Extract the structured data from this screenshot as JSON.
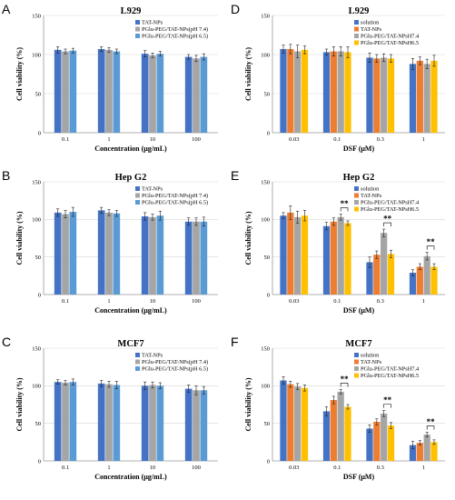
{
  "colors": {
    "blue": "#4472C4",
    "gray": "#A5A5A5",
    "lightblue": "#5B9BD5",
    "orange": "#ED7D31",
    "yellow": "#FFC000",
    "error": "#222222",
    "axis": "#999999",
    "grid": "#d8d8d8"
  },
  "chart_data": [
    {
      "letter": "A",
      "type": "bar",
      "title": "L929",
      "xlabel": "Concentration (μg/mL)",
      "ylabel": "Cell viability (%)",
      "ylim": [
        0,
        150
      ],
      "yticks": [
        0,
        50,
        100,
        150
      ],
      "categories": [
        "0.1",
        "1",
        "10",
        "100"
      ],
      "series": [
        {
          "name": "TAT-NPs",
          "color": "blue",
          "values": [
            106,
            107,
            101,
            97
          ],
          "errors": [
            4,
            3,
            4,
            3
          ]
        },
        {
          "name": "PGlu-PEG/TAT-NPs(pH 7.4)",
          "color": "gray",
          "values": [
            104,
            106,
            99,
            95
          ],
          "errors": [
            3,
            3,
            3,
            4
          ]
        },
        {
          "name": "PGlu-PEG/TAT-NPs(pH 6.5)",
          "color": "lightblue",
          "values": [
            105,
            104,
            101,
            97
          ],
          "errors": [
            3,
            3,
            3,
            4
          ]
        }
      ],
      "significance": [],
      "legend": "top-right"
    },
    {
      "letter": "B",
      "type": "bar",
      "title": "Hep G2",
      "xlabel": "Concentration (μg/mL)",
      "ylabel": "Cell viability (%)",
      "ylim": [
        0,
        150
      ],
      "yticks": [
        0,
        50,
        100,
        150
      ],
      "categories": [
        "0.1",
        "1",
        "10",
        "100"
      ],
      "series": [
        {
          "name": "TAT-NPs",
          "color": "blue",
          "values": [
            109,
            112,
            104,
            97
          ],
          "errors": [
            5,
            4,
            5,
            5
          ]
        },
        {
          "name": "PGlu-PEG/TAT-NPs(pH 7.4)",
          "color": "gray",
          "values": [
            107,
            109,
            103,
            97
          ],
          "errors": [
            5,
            4,
            4,
            5
          ]
        },
        {
          "name": "PGlu-PEG/TAT-NPs(pH 6.5)",
          "color": "lightblue",
          "values": [
            110,
            108,
            105,
            97
          ],
          "errors": [
            6,
            4,
            6,
            6
          ]
        }
      ],
      "significance": [],
      "legend": "top-right"
    },
    {
      "letter": "C",
      "type": "bar",
      "title": "MCF7",
      "xlabel": "Concentration (μg/mL)",
      "ylabel": "Cell viability (%)",
      "ylim": [
        0,
        150
      ],
      "yticks": [
        0,
        50,
        100,
        150
      ],
      "categories": [
        "0.1",
        "1",
        "10",
        "100"
      ],
      "series": [
        {
          "name": "TAT-NPs",
          "color": "blue",
          "values": [
            105,
            103,
            100,
            96
          ],
          "errors": [
            3,
            4,
            5,
            5
          ]
        },
        {
          "name": "PGlu-PEG/TAT-NPs(pH 7.4)",
          "color": "gray",
          "values": [
            104,
            102,
            101,
            94
          ],
          "errors": [
            3,
            4,
            4,
            6
          ]
        },
        {
          "name": "PGlu-PEG/TAT-NPs(pH 6.5)",
          "color": "lightblue",
          "values": [
            105,
            101,
            100,
            94
          ],
          "errors": [
            4,
            5,
            4,
            5
          ]
        }
      ],
      "significance": [],
      "legend": "top-right"
    },
    {
      "letter": "D",
      "type": "bar",
      "title": "L929",
      "xlabel": "DSF (μM)",
      "ylabel": "Cell viability (%)",
      "ylim": [
        0,
        150
      ],
      "yticks": [
        0,
        50,
        100,
        150
      ],
      "categories": [
        "0.03",
        "0.1",
        "0.3",
        "1"
      ],
      "series": [
        {
          "name": "solution",
          "color": "blue",
          "values": [
            107,
            103,
            96,
            88
          ],
          "errors": [
            5,
            4,
            6,
            7
          ]
        },
        {
          "name": "TAT-NPs",
          "color": "orange",
          "values": [
            107,
            104,
            95,
            92
          ],
          "errors": [
            6,
            6,
            5,
            5
          ]
        },
        {
          "name": "PGlu-PEG/TAT-NPsH7.4",
          "color": "gray",
          "values": [
            104,
            104,
            96,
            88
          ],
          "errors": [
            8,
            6,
            5,
            6
          ]
        },
        {
          "name": "PGlu-PEG/TAT-NPsH6.5",
          "color": "yellow",
          "values": [
            106,
            103,
            95,
            92
          ],
          "errors": [
            5,
            7,
            5,
            7
          ]
        }
      ],
      "significance": [],
      "legend": "top-right"
    },
    {
      "letter": "E",
      "type": "bar",
      "title": "Hep G2",
      "xlabel": "DSF (μM)",
      "ylabel": "Cell viability (%)",
      "ylim": [
        0,
        150
      ],
      "yticks": [
        0,
        50,
        100,
        150
      ],
      "categories": [
        "0.03",
        "0.1",
        "0.3",
        "1"
      ],
      "series": [
        {
          "name": "solution",
          "color": "blue",
          "values": [
            105,
            91,
            43,
            29
          ],
          "errors": [
            4,
            5,
            7,
            4
          ]
        },
        {
          "name": "TAT-NPs",
          "color": "orange",
          "values": [
            109,
            97,
            53,
            37
          ],
          "errors": [
            9,
            5,
            5,
            4
          ]
        },
        {
          "name": "PGlu-PEG/TAT-NPsH7.4",
          "color": "gray",
          "values": [
            103,
            103,
            82,
            51
          ],
          "errors": [
            8,
            4,
            5,
            5
          ]
        },
        {
          "name": "PGlu-PEG/TAT-NPsH6.5",
          "color": "yellow",
          "values": [
            105,
            95,
            54,
            37
          ],
          "errors": [
            7,
            3,
            5,
            4
          ]
        }
      ],
      "significance": [
        {
          "category": 1,
          "from": 2,
          "to": 3,
          "label": "**"
        },
        {
          "category": 2,
          "from": 2,
          "to": 3,
          "label": "**"
        },
        {
          "category": 3,
          "from": 2,
          "to": 3,
          "label": "**"
        }
      ],
      "legend": "top-right"
    },
    {
      "letter": "F",
      "type": "bar",
      "title": "MCF7",
      "xlabel": "DSF (μM)",
      "ylabel": "Cell viability (%)",
      "ylim": [
        0,
        150
      ],
      "yticks": [
        0,
        50,
        100,
        150
      ],
      "categories": [
        "0.03",
        "0.1",
        "0.3",
        "1"
      ],
      "series": [
        {
          "name": "solution",
          "color": "blue",
          "values": [
            107,
            66,
            43,
            21
          ],
          "errors": [
            5,
            6,
            5,
            5
          ]
        },
        {
          "name": "TAT-NPs",
          "color": "orange",
          "values": [
            102,
            81,
            52,
            24
          ],
          "errors": [
            4,
            5,
            4,
            3
          ]
        },
        {
          "name": "PGlu-PEG/TAT-NPsH7.4",
          "color": "gray",
          "values": [
            99,
            92,
            63,
            35
          ],
          "errors": [
            4,
            3,
            4,
            3
          ]
        },
        {
          "name": "PGlu-PEG/TAT-NPsH6.5",
          "color": "yellow",
          "values": [
            97,
            72,
            47,
            25
          ],
          "errors": [
            4,
            3,
            4,
            3
          ]
        }
      ],
      "significance": [
        {
          "category": 1,
          "from": 2,
          "to": 3,
          "label": "**"
        },
        {
          "category": 2,
          "from": 2,
          "to": 3,
          "label": "**"
        },
        {
          "category": 3,
          "from": 2,
          "to": 3,
          "label": "**"
        }
      ],
      "legend": "top-right"
    }
  ]
}
